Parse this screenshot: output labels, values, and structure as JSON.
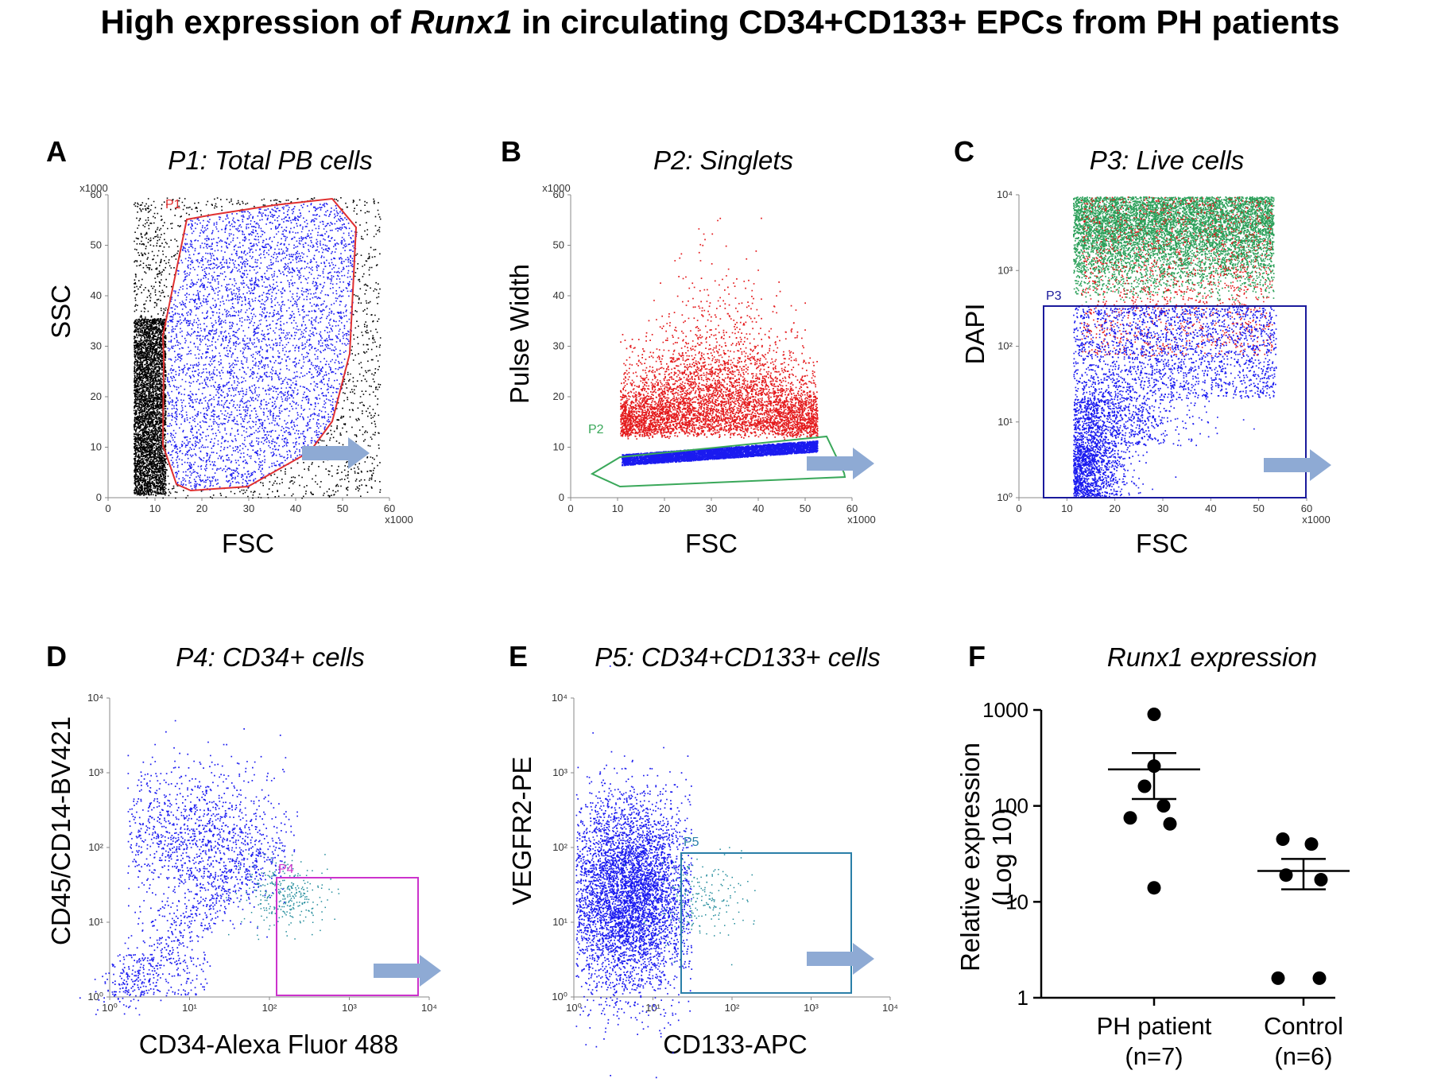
{
  "title": {
    "pre": "High expression of ",
    "italic": "Runx1",
    "post": " in circulating CD34+CD133+ EPCs from PH patients"
  },
  "panels": {
    "A": {
      "letter": "A",
      "title": "P1: Total PB cells",
      "xlabel": "FSC",
      "ylabel": "SSC",
      "gate": "P1",
      "xticks": [
        "0",
        "10",
        "20",
        "30",
        "40",
        "50",
        "60"
      ],
      "yticks": [
        "0",
        "10",
        "20",
        "30",
        "40",
        "50",
        "60"
      ],
      "xmult": "x1000",
      "ymult": "x1000"
    },
    "B": {
      "letter": "B",
      "title": "P2: Singlets",
      "xlabel": "FSC",
      "ylabel": "Pulse Width",
      "gate": "P2",
      "xticks": [
        "0",
        "10",
        "20",
        "30",
        "40",
        "50",
        "60"
      ],
      "yticks": [
        "0",
        "10",
        "20",
        "30",
        "40",
        "50",
        "60"
      ],
      "xmult": "x1000",
      "ymult": "x1000"
    },
    "C": {
      "letter": "C",
      "title": "P3: Live cells",
      "xlabel": "FSC",
      "ylabel": "DAPI",
      "gate": "P3",
      "xticks": [
        "0",
        "10",
        "20",
        "30",
        "40",
        "50",
        "60"
      ],
      "yticks": [
        "10⁰",
        "10¹",
        "10²",
        "10³",
        "10⁴"
      ],
      "xmult": "x1000"
    },
    "D": {
      "letter": "D",
      "title": "P4: CD34+ cells",
      "xlabel": "CD34-Alexa Fluor 488",
      "ylabel": "CD45/CD14-BV421",
      "gate": "P4",
      "xticks": [
        "10⁰",
        "10¹",
        "10²",
        "10³",
        "10⁴"
      ],
      "yticks": [
        "10⁰",
        "10¹",
        "10²",
        "10³",
        "10⁴"
      ]
    },
    "E": {
      "letter": "E",
      "title": "P5: CD34+CD133+ cells",
      "xlabel": "CD133-APC",
      "ylabel": "VEGFR2-PE",
      "gate": "P5",
      "xticks": [
        "10⁰",
        "10¹",
        "10²",
        "10³",
        "10⁴"
      ],
      "yticks": [
        "10⁰",
        "10¹",
        "10²",
        "10³",
        "10⁴"
      ]
    },
    "F": {
      "letter": "F",
      "title": "Runx1 expression"
    }
  },
  "colors": {
    "blue": "#1a1af0",
    "red": "#e41a1c",
    "green": "#2ca05a",
    "black": "#000000",
    "gateP1": "#e03030",
    "gateP2": "#3aa85a",
    "gateP3": "#1a1a9c",
    "gateP4": "#cc33cc",
    "gateP5": "#2a7fa8",
    "arrow": "#8eaad4"
  },
  "chart_data": {
    "type": "scatter",
    "title": "Runx1 expression",
    "ylabel_line1": "Relative expression",
    "ylabel_line2": "(Log 10)",
    "yscale": "log",
    "ylim": [
      1,
      1000
    ],
    "yticks": [
      "1",
      "10",
      "100",
      "1000"
    ],
    "categories": [
      {
        "label": "PH patient",
        "n": "(n=7)"
      },
      {
        "label": "Control",
        "n": "(n=6)"
      }
    ],
    "series": [
      {
        "name": "PH patient",
        "values": [
          900,
          260,
          160,
          100,
          75,
          65,
          14
        ],
        "mean": 240,
        "sem_low": 118,
        "sem_high": 355
      },
      {
        "name": "Control",
        "values": [
          45,
          40,
          19,
          17,
          1.6,
          1.6
        ],
        "mean": 21,
        "sem_low": 13.5,
        "sem_high": 28
      }
    ]
  }
}
